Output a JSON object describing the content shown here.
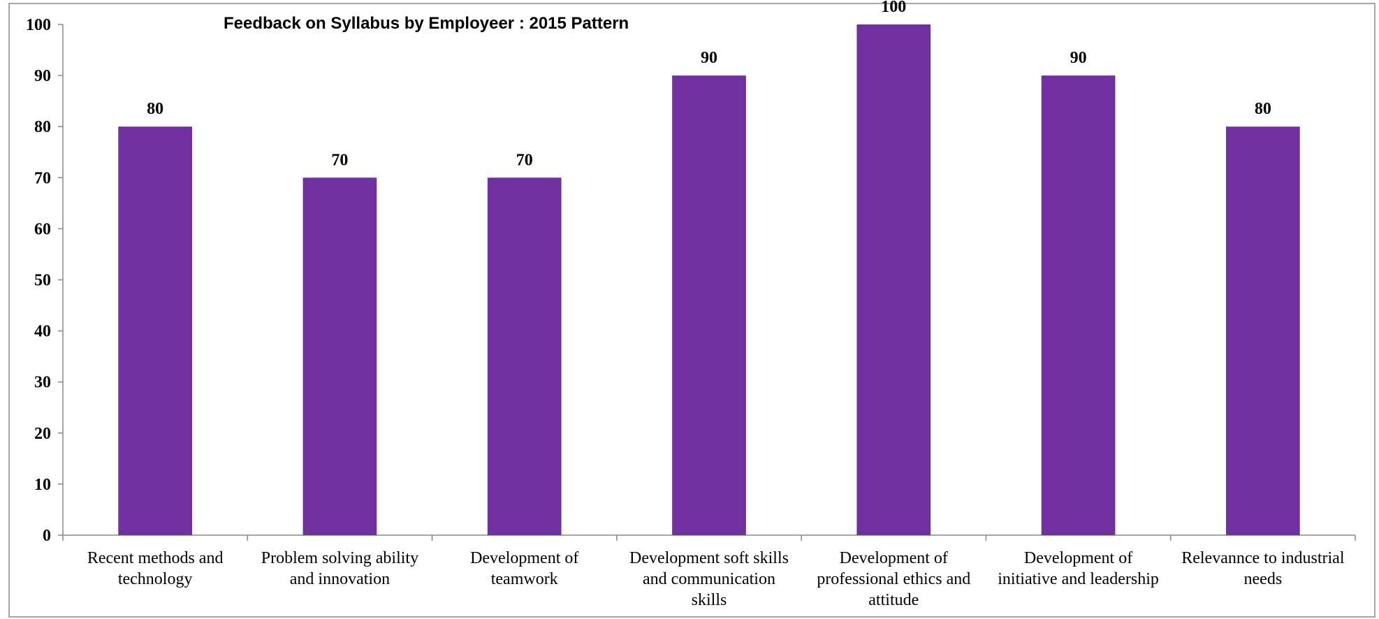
{
  "chart_data": {
    "type": "bar",
    "title": "Feedback on Syllabus by Employeer : 2015 Pattern",
    "xlabel": "",
    "ylabel": "",
    "ylim": [
      0,
      100
    ],
    "yticks": [
      0,
      10,
      20,
      30,
      40,
      50,
      60,
      70,
      80,
      90,
      100
    ],
    "grid": false,
    "legend": "none",
    "bar_color": "#7030A0",
    "categories": [
      [
        "Recent methods and",
        "technology"
      ],
      [
        "Problem solving ability",
        "and innovation"
      ],
      [
        "Development of",
        "teamwork"
      ],
      [
        "Development soft skills",
        "and communication",
        "skills"
      ],
      [
        "Development of",
        "professional ethics and",
        "attitude"
      ],
      [
        "Development of",
        "initiative and leadership"
      ],
      [
        "Relevannce to industrial",
        "needs"
      ]
    ],
    "values": [
      80,
      70,
      70,
      90,
      100,
      90,
      80
    ]
  }
}
